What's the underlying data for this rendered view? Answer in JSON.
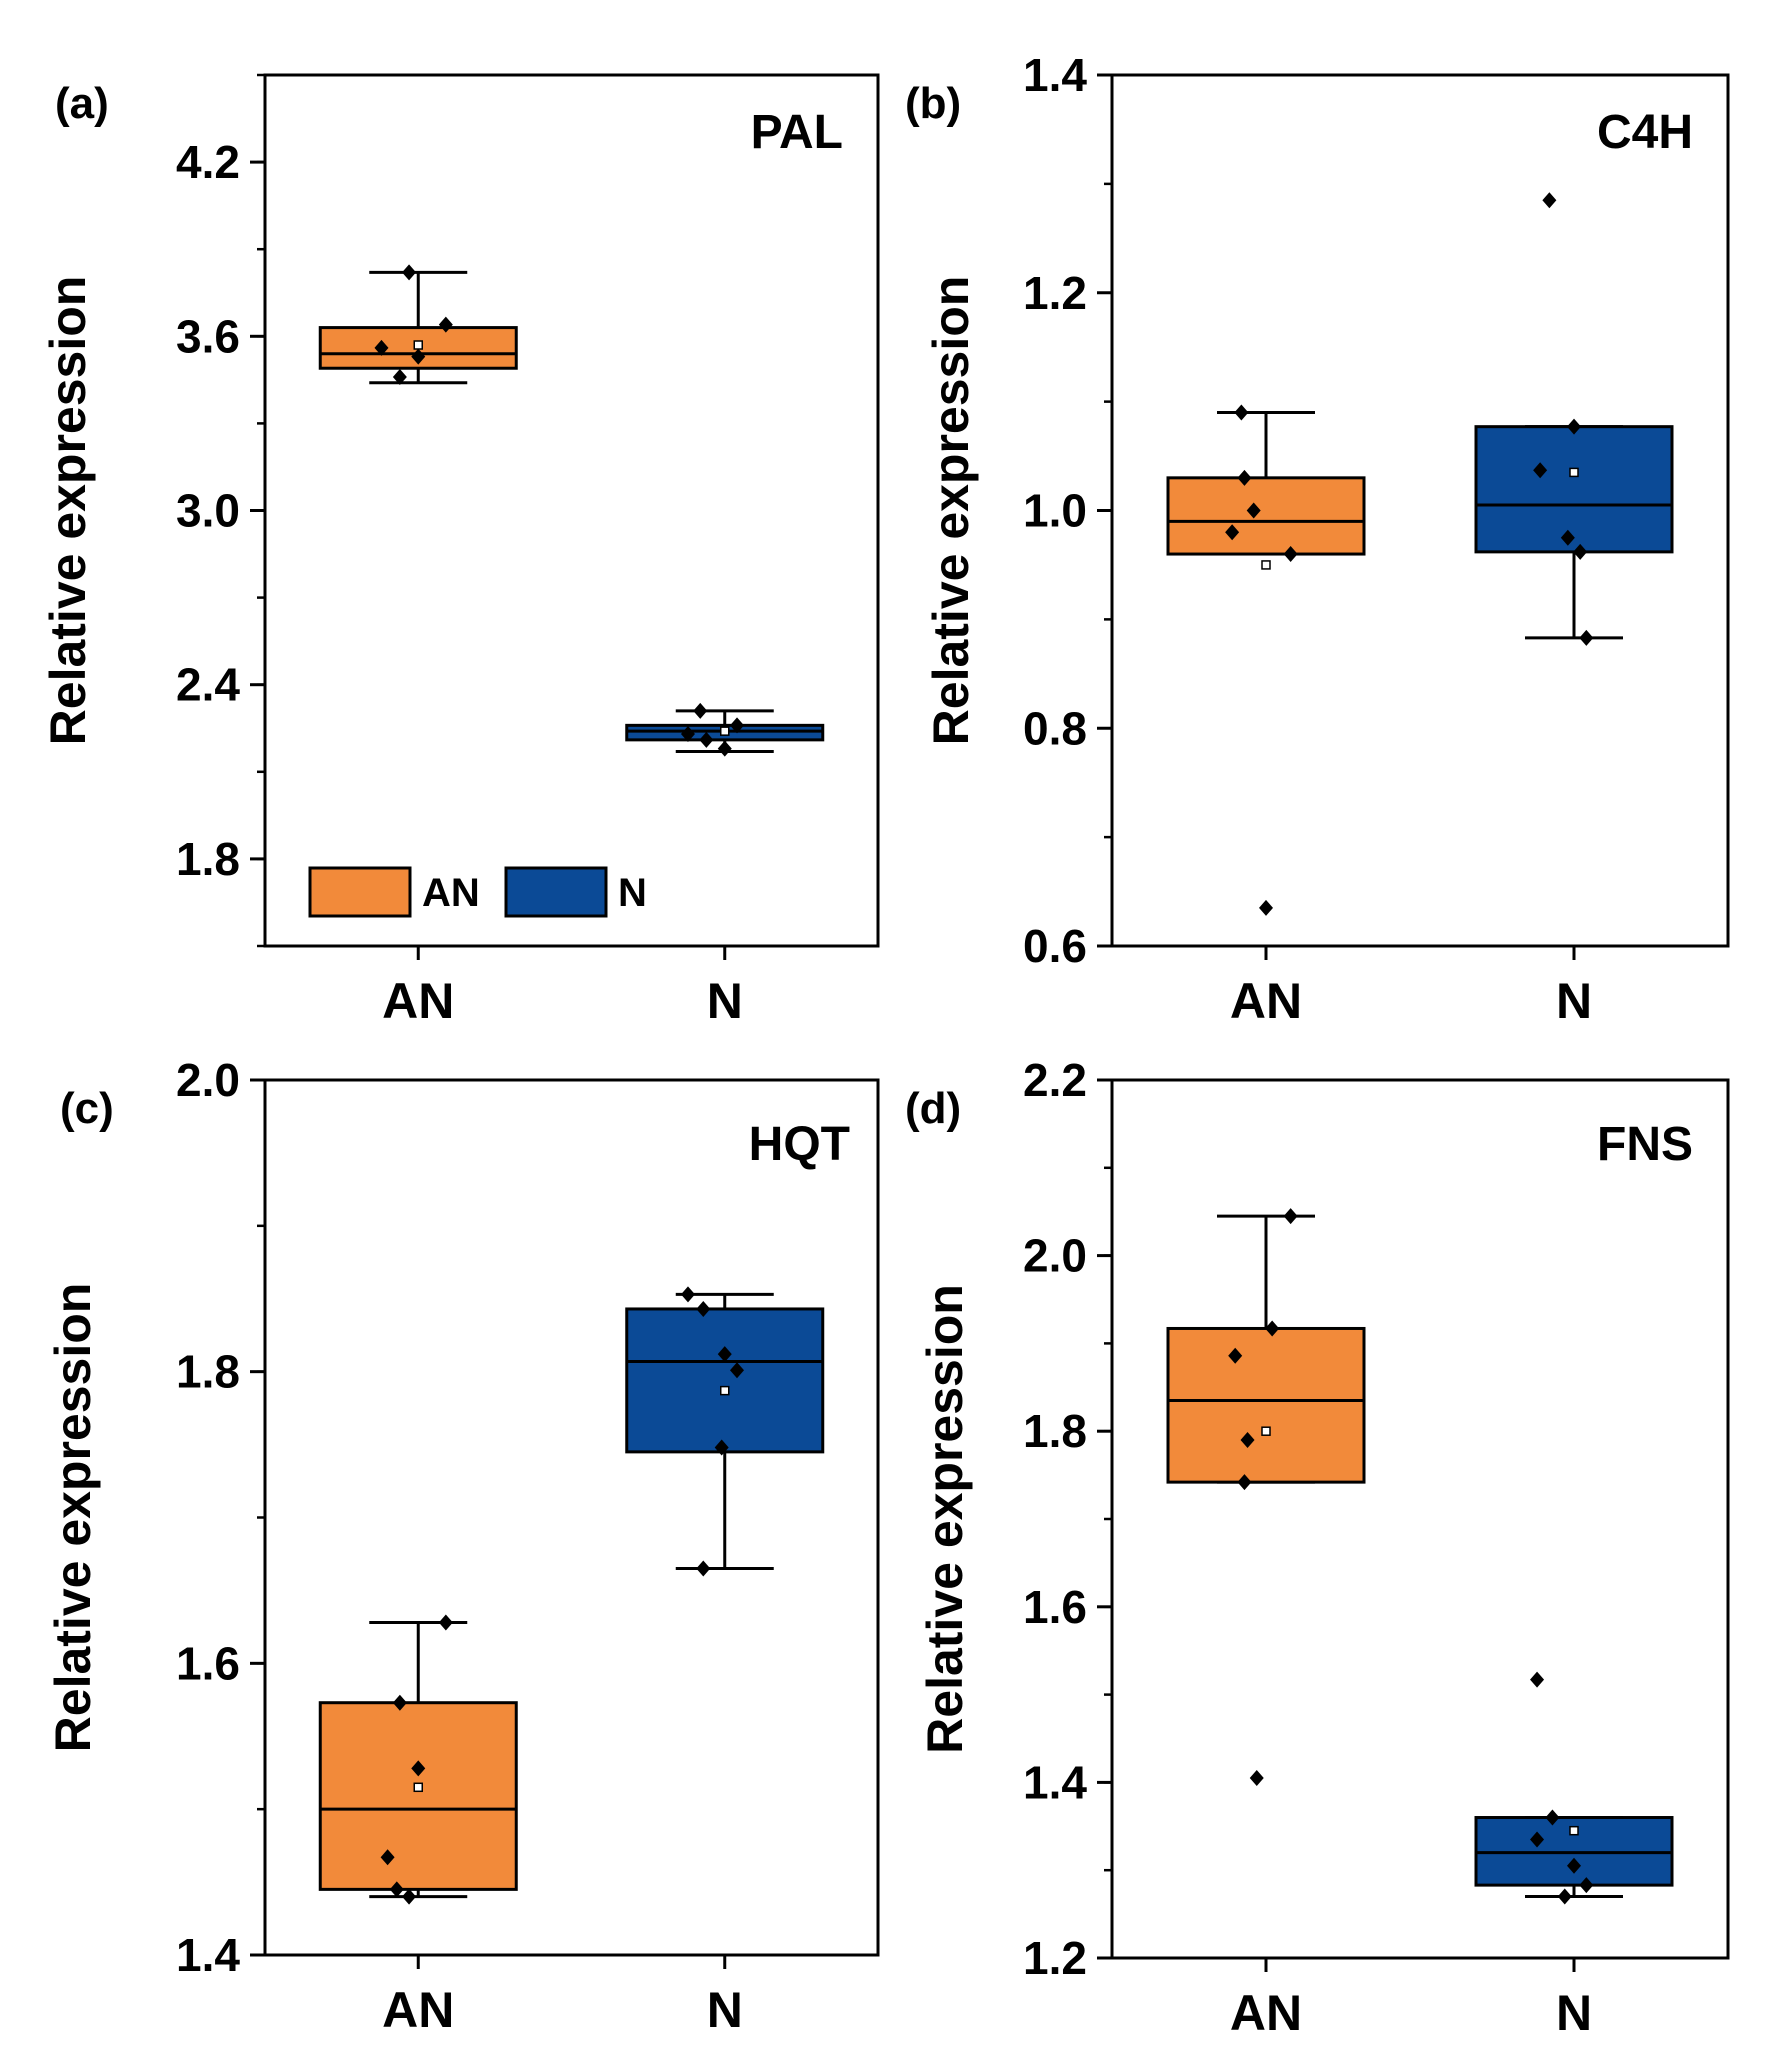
{
  "colors": {
    "AN": "#f28a3a",
    "N": "#0b4a96"
  },
  "legend": {
    "items": [
      {
        "label": "AN",
        "color": "#f28a3a"
      },
      {
        "label": "N",
        "color": "#0b4a96"
      }
    ]
  },
  "chart_data": [
    {
      "type": "box",
      "panel": "(a)",
      "gene": "PAL",
      "ylabel": "Relative expression",
      "ylim": [
        1.5,
        4.5
      ],
      "yticks": [
        1.8,
        2.4,
        3.0,
        3.6,
        4.2
      ],
      "ytick_labels": [
        "1.8",
        "2.4",
        "3.0",
        "3.6",
        "4.2"
      ],
      "minor_step": 0.3,
      "categories": [
        "AN",
        "N"
      ],
      "boxes": [
        {
          "name": "AN",
          "whisker_low": 3.44,
          "q1": 3.49,
          "median": 3.54,
          "q3": 3.63,
          "whisker_high": 3.82,
          "mean": 3.57,
          "points": [
            [
              -0.12,
              3.56
            ],
            [
              -0.06,
              3.46
            ],
            [
              0.0,
              3.53
            ],
            [
              0.09,
              3.64
            ],
            [
              -0.03,
              3.82
            ]
          ]
        },
        {
          "name": "N",
          "whisker_low": 2.17,
          "q1": 2.21,
          "median": 2.24,
          "q3": 2.26,
          "whisker_high": 2.31,
          "mean": 2.24,
          "points": [
            [
              -0.12,
              2.23
            ],
            [
              -0.06,
              2.21
            ],
            [
              0.0,
              2.18
            ],
            [
              0.04,
              2.26
            ],
            [
              -0.08,
              2.31
            ]
          ]
        }
      ],
      "show_legend": true
    },
    {
      "type": "box",
      "panel": "(b)",
      "gene": "C4H",
      "ylabel": "Relative expression",
      "ylim": [
        0.6,
        1.4
      ],
      "yticks": [
        0.6,
        0.8,
        1.0,
        1.2,
        1.4
      ],
      "ytick_labels": [
        "0.6",
        "0.8",
        "1.0",
        "1.2",
        "1.4"
      ],
      "minor_step": 0.1,
      "categories": [
        "AN",
        "N"
      ],
      "boxes": [
        {
          "name": "AN",
          "whisker_low": 0.96,
          "q1": 0.96,
          "median": 0.99,
          "q3": 1.03,
          "whisker_high": 1.09,
          "mean": 0.95,
          "points": [
            [
              -0.11,
              0.98
            ],
            [
              -0.04,
              1.0
            ],
            [
              -0.07,
              1.03
            ],
            [
              0.08,
              0.96
            ],
            [
              -0.08,
              1.09
            ],
            [
              0.0,
              0.635
            ]
          ]
        },
        {
          "name": "N",
          "whisker_low": 0.883,
          "q1": 0.962,
          "median": 1.005,
          "q3": 1.077,
          "whisker_high": 1.077,
          "mean": 1.035,
          "points": [
            [
              -0.11,
              1.037
            ],
            [
              -0.02,
              0.975
            ],
            [
              0.02,
              0.962
            ],
            [
              0.0,
              1.077
            ],
            [
              -0.08,
              1.285
            ],
            [
              0.04,
              0.883
            ]
          ]
        }
      ],
      "show_legend": false
    },
    {
      "type": "box",
      "panel": "(c)",
      "gene": "HQT",
      "ylabel": "Relative expression",
      "ylim": [
        1.4,
        2.0
      ],
      "yticks": [
        1.4,
        1.6,
        1.8,
        2.0
      ],
      "ytick_labels": [
        "1.4",
        "1.6",
        "1.8",
        "2.0"
      ],
      "minor_step": 0.1,
      "categories": [
        "AN",
        "N"
      ],
      "boxes": [
        {
          "name": "AN",
          "whisker_low": 1.44,
          "q1": 1.445,
          "median": 1.5,
          "q3": 1.573,
          "whisker_high": 1.628,
          "mean": 1.515,
          "points": [
            [
              -0.1,
              1.467
            ],
            [
              0.0,
              1.528
            ],
            [
              -0.06,
              1.573
            ],
            [
              0.09,
              1.628
            ],
            [
              -0.07,
              1.445
            ],
            [
              -0.03,
              1.44
            ]
          ]
        },
        {
          "name": "N",
          "whisker_low": 1.665,
          "q1": 1.745,
          "median": 1.807,
          "q3": 1.843,
          "whisker_high": 1.853,
          "mean": 1.787,
          "points": [
            [
              -0.12,
              1.853
            ],
            [
              -0.07,
              1.843
            ],
            [
              0.0,
              1.812
            ],
            [
              0.04,
              1.801
            ],
            [
              -0.01,
              1.748
            ],
            [
              -0.07,
              1.665
            ]
          ]
        }
      ],
      "show_legend": false
    },
    {
      "type": "box",
      "panel": "(d)",
      "gene": "FNS",
      "ylabel": "Relative expression",
      "ylim": [
        1.2,
        2.2
      ],
      "yticks": [
        1.2,
        1.4,
        1.6,
        1.8,
        2.0,
        2.2
      ],
      "ytick_labels": [
        "1.2",
        "1.4",
        "1.6",
        "1.8",
        "2.0",
        "2.2"
      ],
      "minor_step": 0.1,
      "categories": [
        "AN",
        "N"
      ],
      "boxes": [
        {
          "name": "AN",
          "whisker_low": 1.742,
          "q1": 1.742,
          "median": 1.835,
          "q3": 1.917,
          "whisker_high": 2.045,
          "mean": 1.8,
          "points": [
            [
              -0.1,
              1.886
            ],
            [
              -0.06,
              1.79
            ],
            [
              0.02,
              1.917
            ],
            [
              -0.07,
              1.742
            ],
            [
              0.08,
              2.045
            ],
            [
              -0.03,
              1.405
            ]
          ]
        },
        {
          "name": "N",
          "whisker_low": 1.27,
          "q1": 1.283,
          "median": 1.32,
          "q3": 1.36,
          "whisker_high": 1.36,
          "mean": 1.345,
          "points": [
            [
              -0.12,
              1.335
            ],
            [
              -0.07,
              1.36
            ],
            [
              0.0,
              1.305
            ],
            [
              0.04,
              1.283
            ],
            [
              -0.12,
              1.517
            ],
            [
              -0.03,
              1.27
            ]
          ]
        }
      ],
      "show_legend": false
    }
  ]
}
